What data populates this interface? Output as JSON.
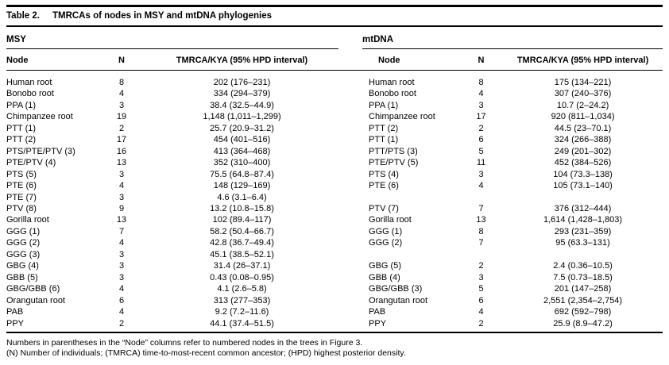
{
  "table": {
    "label": "Table 2.",
    "title": "TMRCAs of nodes in MSY and mtDNA phylogenies",
    "groups": [
      {
        "name": "MSY"
      },
      {
        "name": "mtDNA"
      }
    ],
    "columns": [
      "Node",
      "N",
      "TMRCA/KYA (95% HPD interval)"
    ],
    "rows": [
      {
        "msy": {
          "node": "Human root",
          "n": "8",
          "tmrca": "202 (176–231)"
        },
        "mtdna": {
          "node": "Human root",
          "n": "8",
          "tmrca": "175 (134–221)"
        }
      },
      {
        "msy": {
          "node": "Bonobo root",
          "n": "4",
          "tmrca": "334 (294–379)"
        },
        "mtdna": {
          "node": "Bonobo root",
          "n": "4",
          "tmrca": "307 (240–376)"
        }
      },
      {
        "msy": {
          "node": "PPA (1)",
          "n": "3",
          "tmrca": "38.4 (32.5–44.9)"
        },
        "mtdna": {
          "node": "PPA (1)",
          "n": "3",
          "tmrca": "10.7 (2–24.2)"
        }
      },
      {
        "msy": {
          "node": "Chimpanzee root",
          "n": "19",
          "tmrca": "1,148 (1,011–1,299)"
        },
        "mtdna": {
          "node": "Chimpanzee root",
          "n": "17",
          "tmrca": "920 (811–1,034)"
        }
      },
      {
        "msy": {
          "node": "PTT (1)",
          "n": "2",
          "tmrca": "25.7 (20.9–31.2)"
        },
        "mtdna": {
          "node": "PTT (2)",
          "n": "2",
          "tmrca": "44.5 (23–70.1)"
        }
      },
      {
        "msy": {
          "node": "PTT (2)",
          "n": "17",
          "tmrca": "454 (401–516)"
        },
        "mtdna": {
          "node": "PTT (1)",
          "n": "6",
          "tmrca": "324 (266–388)"
        }
      },
      {
        "msy": {
          "node": "PTS/PTE/PTV (3)",
          "n": "16",
          "tmrca": "413 (364–468)"
        },
        "mtdna": {
          "node": "PTT/PTS (3)",
          "n": "5",
          "tmrca": "249 (201–302)"
        }
      },
      {
        "msy": {
          "node": "PTE/PTV (4)",
          "n": "13",
          "tmrca": "352 (310–400)"
        },
        "mtdna": {
          "node": "PTE/PTV (5)",
          "n": "11",
          "tmrca": "452 (384–526)"
        }
      },
      {
        "msy": {
          "node": "PTS (5)",
          "n": "3",
          "tmrca": "75.5 (64.8–87.4)"
        },
        "mtdna": {
          "node": "PTS (4)",
          "n": "3",
          "tmrca": "104 (73.3–138)"
        }
      },
      {
        "msy": {
          "node": "PTE (6)",
          "n": "4",
          "tmrca": "148 (129–169)"
        },
        "mtdna": {
          "node": "PTE (6)",
          "n": "4",
          "tmrca": "105 (73.1–140)"
        }
      },
      {
        "msy": {
          "node": "PTE (7)",
          "n": "3",
          "tmrca": "4.6 (3.1–6.4)"
        },
        "mtdna": {
          "node": "",
          "n": "",
          "tmrca": ""
        }
      },
      {
        "msy": {
          "node": "PTV (8)",
          "n": "9",
          "tmrca": "13.2 (10.8–15.8)"
        },
        "mtdna": {
          "node": "PTV (7)",
          "n": "7",
          "tmrca": "376 (312–444)"
        }
      },
      {
        "msy": {
          "node": "Gorilla root",
          "n": "13",
          "tmrca": "102 (89.4–117)"
        },
        "mtdna": {
          "node": "Gorilla root",
          "n": "13",
          "tmrca": "1,614 (1,428–1,803)"
        }
      },
      {
        "msy": {
          "node": "GGG (1)",
          "n": "7",
          "tmrca": "58.2 (50.4–66.7)"
        },
        "mtdna": {
          "node": "GGG (1)",
          "n": "8",
          "tmrca": "293 (231–359)"
        }
      },
      {
        "msy": {
          "node": "GGG (2)",
          "n": "4",
          "tmrca": "42.8 (36.7–49.4)"
        },
        "mtdna": {
          "node": "GGG (2)",
          "n": "7",
          "tmrca": "95 (63.3–131)"
        }
      },
      {
        "msy": {
          "node": "GGG (3)",
          "n": "3",
          "tmrca": "45.1 (38.5–52.1)"
        },
        "mtdna": {
          "node": "",
          "n": "",
          "tmrca": ""
        }
      },
      {
        "msy": {
          "node": "GBG (4)",
          "n": "3",
          "tmrca": "31.4 (26–37.1)"
        },
        "mtdna": {
          "node": "GBG (5)",
          "n": "2",
          "tmrca": "2.4 (0.36–10.5)"
        }
      },
      {
        "msy": {
          "node": "GBB (5)",
          "n": "3",
          "tmrca": "0.43 (0.08–0.95)"
        },
        "mtdna": {
          "node": "GBB (4)",
          "n": "3",
          "tmrca": "7.5 (0.73–18.5)"
        }
      },
      {
        "msy": {
          "node": "GBG/GBB (6)",
          "n": "4",
          "tmrca": "4.1 (2.6–5.8)"
        },
        "mtdna": {
          "node": "GBG/GBB (3)",
          "n": "5",
          "tmrca": "201 (147–258)"
        }
      },
      {
        "msy": {
          "node": "Orangutan root",
          "n": "6",
          "tmrca": "313 (277–353)"
        },
        "mtdna": {
          "node": "Orangutan root",
          "n": "6",
          "tmrca": "2,551 (2,354–2,754)"
        }
      },
      {
        "msy": {
          "node": "PAB",
          "n": "4",
          "tmrca": "9.2 (7.2–11.6)"
        },
        "mtdna": {
          "node": "PAB",
          "n": "4",
          "tmrca": "692 (592–798)"
        }
      },
      {
        "msy": {
          "node": "PPY",
          "n": "2",
          "tmrca": "44.1 (37.4–51.5)"
        },
        "mtdna": {
          "node": "PPY",
          "n": "2",
          "tmrca": "25.9 (8.9–47.2)"
        }
      }
    ]
  },
  "footnotes": [
    "Numbers in parentheses in the “Node” columns refer to numbered nodes in the trees in Figure 3.",
    "(N) Number of individuals; (TMRCA) time-to-most-recent common ancestor; (HPD) highest posterior density."
  ]
}
